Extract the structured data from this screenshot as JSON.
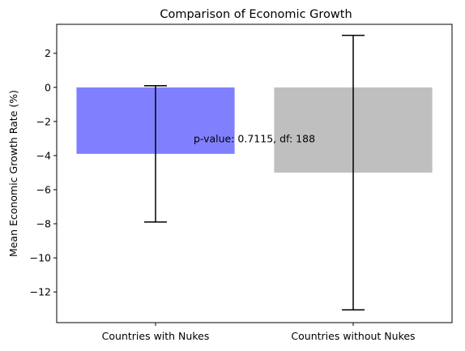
{
  "chart_data": {
    "type": "bar",
    "title": "Comparison of Economic Growth",
    "xlabel": "",
    "ylabel": "Mean Economic Growth Rate (%)",
    "categories": [
      "Countries with Nukes",
      "Countries without Nukes"
    ],
    "values": [
      -3.9,
      -5.0
    ],
    "error": [
      4.0,
      8.05
    ],
    "colors": [
      "#8080ff",
      "#bfbfbf"
    ],
    "alpha_note": "bars are semi-transparent blue and grey",
    "ylim": [
      -13.8,
      3.7
    ],
    "yticks": [
      2,
      0,
      -2,
      -4,
      -6,
      -8,
      -10,
      -12
    ],
    "ytick_labels": [
      "2",
      "0",
      "−2",
      "−4",
      "−6",
      "−8",
      "−10",
      "−12"
    ],
    "annotation": "p-value: 0.7115, df: 188",
    "grid": false,
    "legend": "none"
  }
}
